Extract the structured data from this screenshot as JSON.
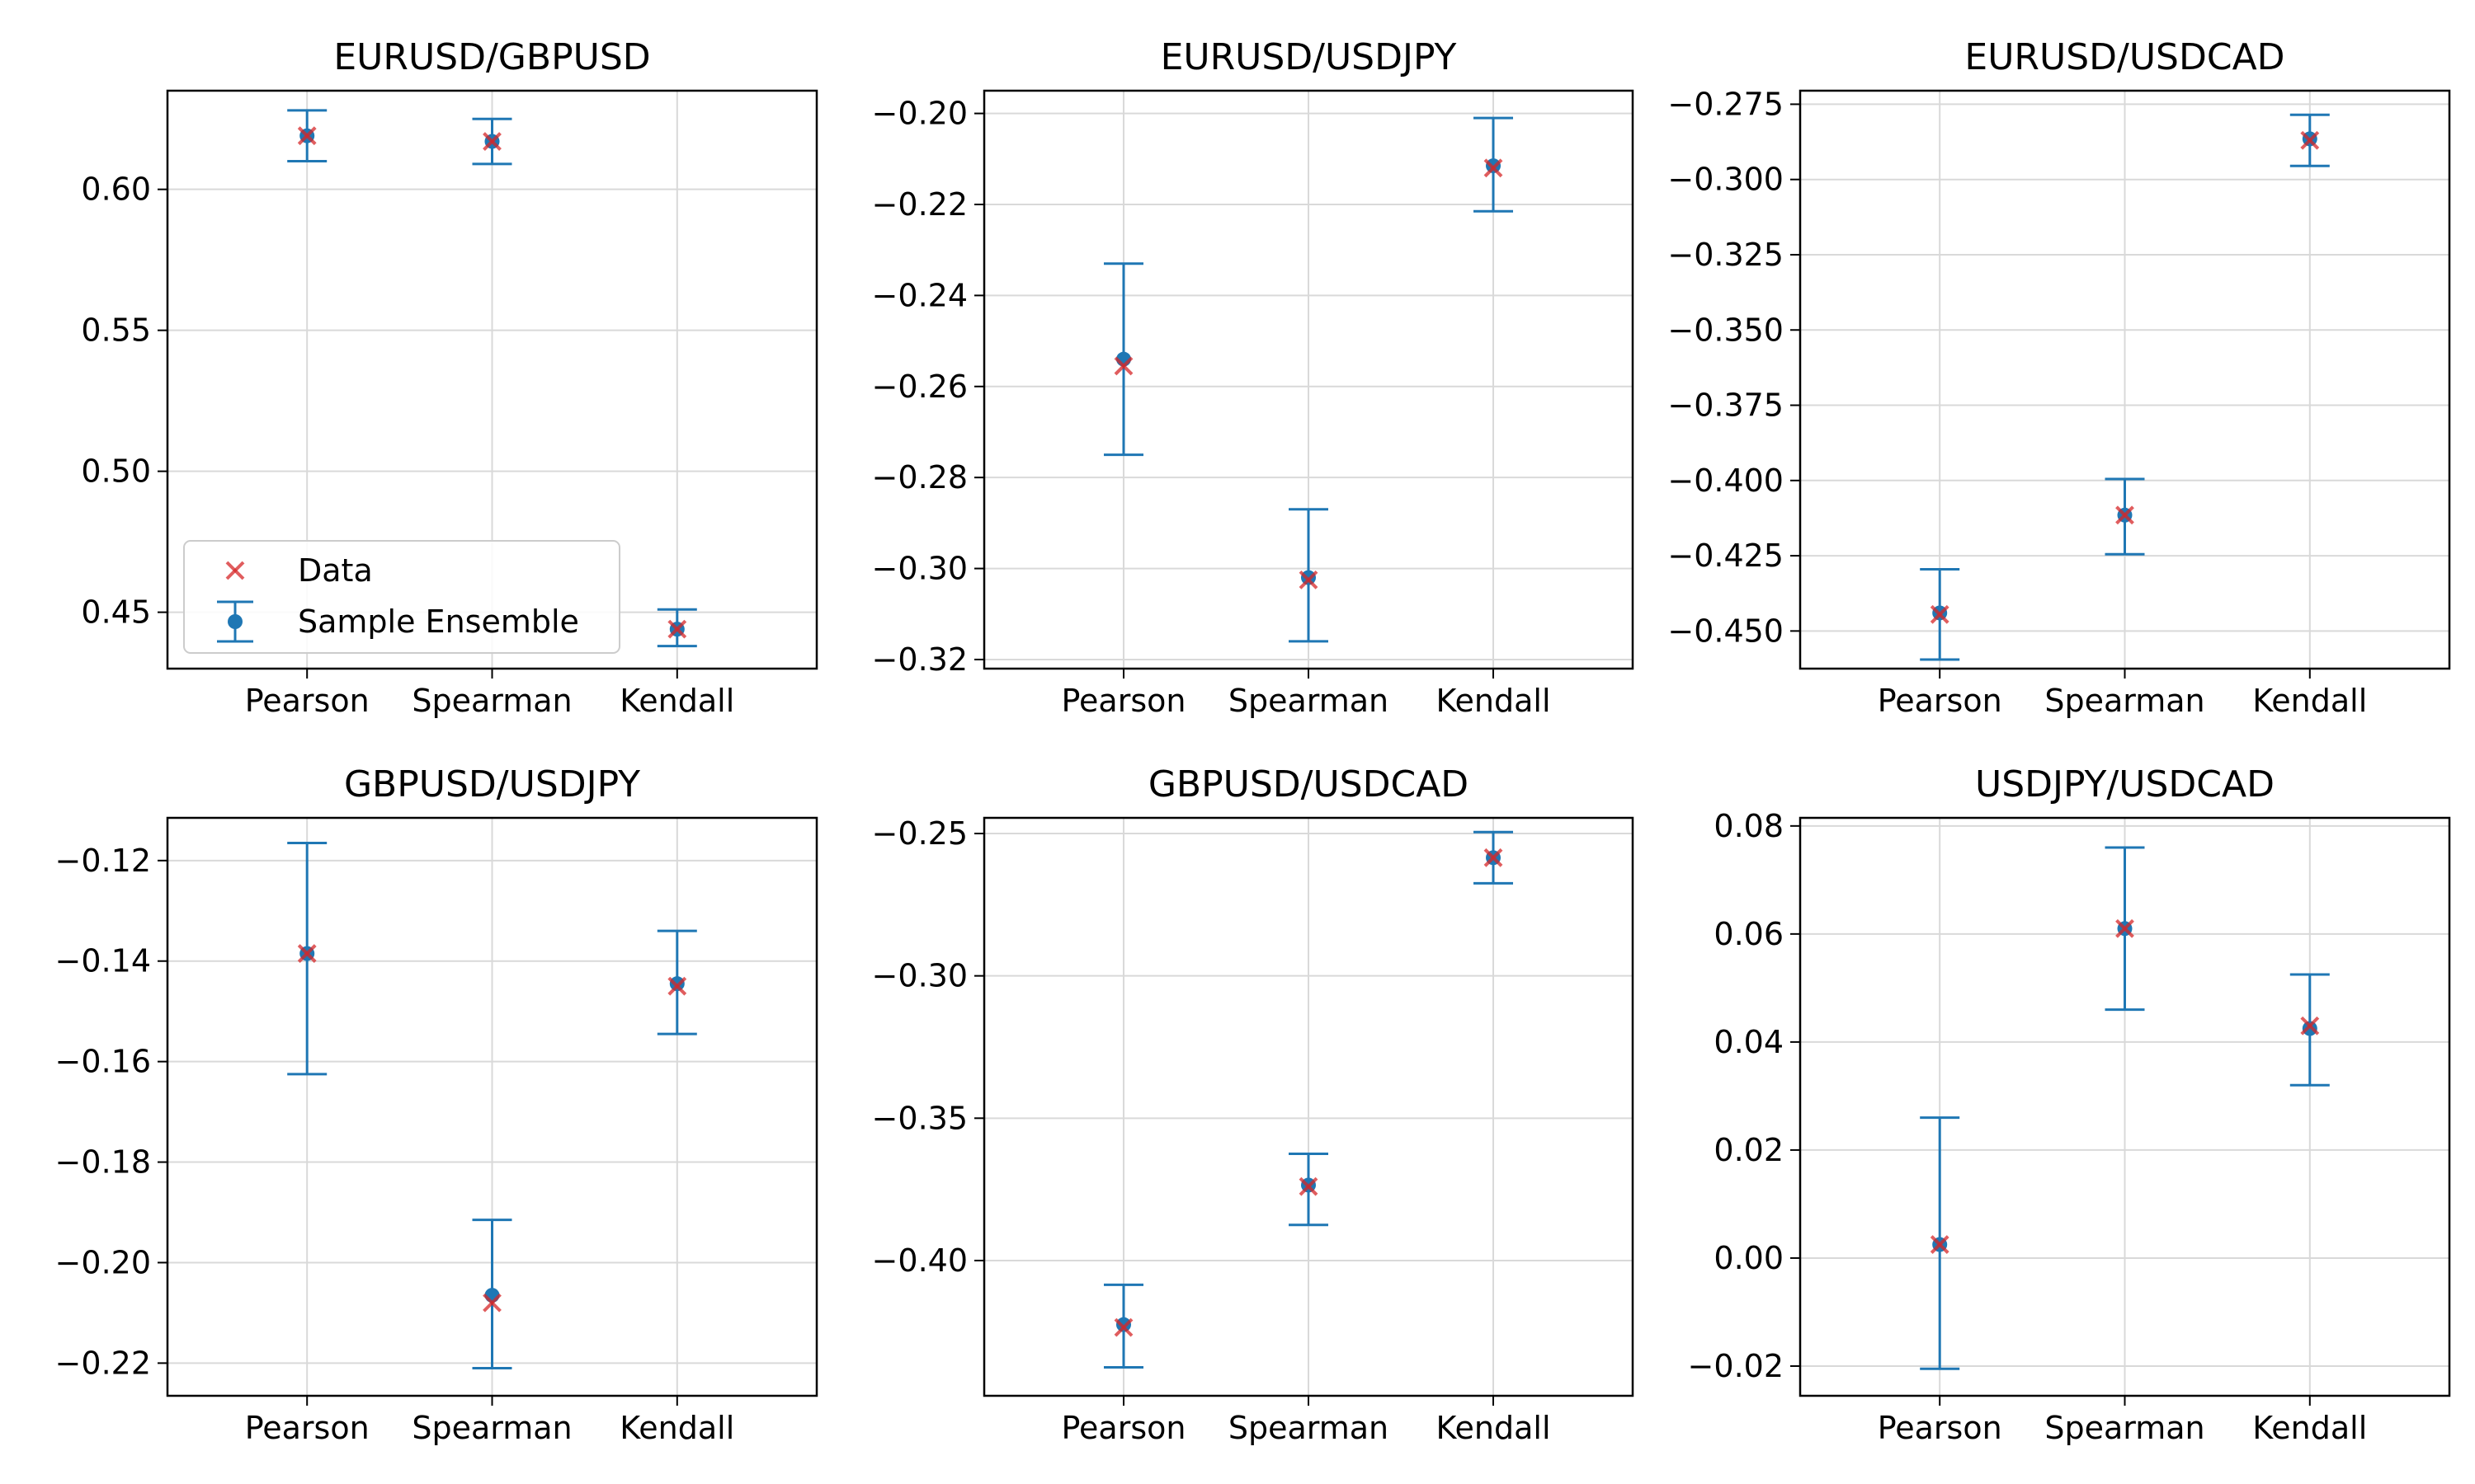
{
  "colors": {
    "ensemble": "#1f77b4",
    "data_marker": "#d62728",
    "grid": "#d9d9d9",
    "axes": "#000000"
  },
  "legend": {
    "location": "lower-left",
    "panel": 0,
    "entries": [
      {
        "label": "Data",
        "marker": "x"
      },
      {
        "label": "Sample Ensemble",
        "marker": "errorbar"
      }
    ]
  },
  "chart_data": [
    {
      "type": "scatter",
      "title": "EURUSD/GBPUSD",
      "categories": [
        "Pearson",
        "Spearman",
        "Kendall"
      ],
      "ylim": [
        0.43,
        0.635
      ],
      "yticks": [
        0.45,
        0.5,
        0.55,
        0.6
      ],
      "ytick_labels": [
        "0.45",
        "0.50",
        "0.55",
        "0.60"
      ],
      "grid": true,
      "series": [
        {
          "name": "Data",
          "marker": "x",
          "values": [
            0.619,
            0.617,
            0.444
          ]
        },
        {
          "name": "Sample Ensemble",
          "marker": "errorbar",
          "values": [
            0.619,
            0.617,
            0.444
          ],
          "lower": [
            0.61,
            0.609,
            0.438
          ],
          "upper": [
            0.628,
            0.625,
            0.451
          ]
        }
      ]
    },
    {
      "type": "scatter",
      "title": "EURUSD/USDJPY",
      "categories": [
        "Pearson",
        "Spearman",
        "Kendall"
      ],
      "ylim": [
        -0.322,
        -0.195
      ],
      "yticks": [
        -0.32,
        -0.3,
        -0.28,
        -0.26,
        -0.24,
        -0.22,
        -0.2
      ],
      "ytick_labels": [
        "−0.32",
        "−0.30",
        "−0.28",
        "−0.26",
        "−0.24",
        "−0.22",
        "−0.20"
      ],
      "grid": true,
      "series": [
        {
          "name": "Data",
          "marker": "x",
          "values": [
            -0.2555,
            -0.3025,
            -0.212
          ]
        },
        {
          "name": "Sample Ensemble",
          "marker": "errorbar",
          "values": [
            -0.254,
            -0.302,
            -0.2115
          ],
          "lower": [
            -0.275,
            -0.316,
            -0.2215
          ],
          "upper": [
            -0.233,
            -0.287,
            -0.201
          ]
        }
      ]
    },
    {
      "type": "scatter",
      "title": "EURUSD/USDCAD",
      "categories": [
        "Pearson",
        "Spearman",
        "Kendall"
      ],
      "ylim": [
        -0.4625,
        -0.2705
      ],
      "yticks": [
        -0.45,
        -0.425,
        -0.4,
        -0.375,
        -0.35,
        -0.325,
        -0.3,
        -0.275
      ],
      "ytick_labels": [
        "−0.450",
        "−0.425",
        "−0.400",
        "−0.375",
        "−0.350",
        "−0.325",
        "−0.300",
        "−0.275"
      ],
      "grid": true,
      "series": [
        {
          "name": "Data",
          "marker": "x",
          "values": [
            -0.4445,
            -0.4115,
            -0.287
          ]
        },
        {
          "name": "Sample Ensemble",
          "marker": "errorbar",
          "values": [
            -0.444,
            -0.4115,
            -0.2865
          ],
          "lower": [
            -0.4595,
            -0.4245,
            -0.2955
          ],
          "upper": [
            -0.4295,
            -0.3995,
            -0.2785
          ]
        }
      ]
    },
    {
      "type": "scatter",
      "title": "GBPUSD/USDJPY",
      "categories": [
        "Pearson",
        "Spearman",
        "Kendall"
      ],
      "ylim": [
        -0.2265,
        -0.1115
      ],
      "yticks": [
        -0.22,
        -0.2,
        -0.18,
        -0.16,
        -0.14,
        -0.12
      ],
      "ytick_labels": [
        "−0.22",
        "−0.20",
        "−0.18",
        "−0.16",
        "−0.14",
        "−0.12"
      ],
      "grid": true,
      "series": [
        {
          "name": "Data",
          "marker": "x",
          "values": [
            -0.1385,
            -0.208,
            -0.145
          ]
        },
        {
          "name": "Sample Ensemble",
          "marker": "errorbar",
          "values": [
            -0.1385,
            -0.2065,
            -0.1445
          ],
          "lower": [
            -0.1625,
            -0.221,
            -0.1545
          ],
          "upper": [
            -0.1165,
            -0.1915,
            -0.134
          ]
        }
      ]
    },
    {
      "type": "scatter",
      "title": "GBPUSD/USDCAD",
      "categories": [
        "Pearson",
        "Spearman",
        "Kendall"
      ],
      "ylim": [
        -0.4475,
        -0.2445
      ],
      "yticks": [
        -0.4,
        -0.35,
        -0.3,
        -0.25
      ],
      "ytick_labels": [
        "−0.40",
        "−0.35",
        "−0.30",
        "−0.25"
      ],
      "grid": true,
      "series": [
        {
          "name": "Data",
          "marker": "x",
          "values": [
            -0.4235,
            -0.374,
            -0.2585
          ]
        },
        {
          "name": "Sample Ensemble",
          "marker": "errorbar",
          "values": [
            -0.4225,
            -0.3735,
            -0.2585
          ],
          "lower": [
            -0.4375,
            -0.3875,
            -0.2675
          ],
          "upper": [
            -0.4085,
            -0.3625,
            -0.2495
          ]
        }
      ]
    },
    {
      "type": "scatter",
      "title": "USDJPY/USDCAD",
      "categories": [
        "Pearson",
        "Spearman",
        "Kendall"
      ],
      "ylim": [
        -0.0255,
        0.0815
      ],
      "yticks": [
        -0.02,
        0.0,
        0.02,
        0.04,
        0.06,
        0.08
      ],
      "ytick_labels": [
        "−0.02",
        "0.00",
        "0.02",
        "0.04",
        "0.06",
        "0.08"
      ],
      "grid": true,
      "series": [
        {
          "name": "Data",
          "marker": "x",
          "values": [
            0.0025,
            0.061,
            0.043
          ]
        },
        {
          "name": "Sample Ensemble",
          "marker": "errorbar",
          "values": [
            0.0025,
            0.061,
            0.0425
          ],
          "lower": [
            -0.0205,
            0.046,
            0.032
          ],
          "upper": [
            0.026,
            0.076,
            0.0525
          ]
        }
      ]
    }
  ]
}
